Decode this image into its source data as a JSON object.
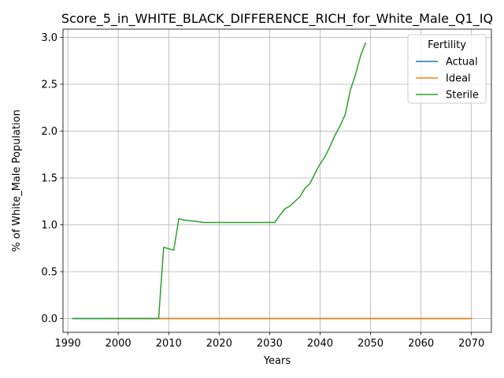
{
  "chart_data": {
    "type": "line",
    "title": "Score_5_in_WHITE_BLACK_DIFFERENCE_RICH_for_White_Male_Q1_IQ",
    "xlabel": "Years",
    "ylabel": "% of White_Male Population",
    "xlim": [
      1989.05,
      2073.95
    ],
    "ylim": [
      -0.147,
      3.088
    ],
    "xticks": [
      1990,
      2000,
      2010,
      2020,
      2030,
      2040,
      2050,
      2060,
      2070
    ],
    "xtick_labels": [
      "1990",
      "2000",
      "2010",
      "2020",
      "2030",
      "2040",
      "2050",
      "2060",
      "2070"
    ],
    "yticks": [
      0.0,
      0.5,
      1.0,
      1.5,
      2.0,
      2.5,
      3.0
    ],
    "ytick_labels": [
      "0.0",
      "0.5",
      "1.0",
      "1.5",
      "2.0",
      "2.5",
      "3.0"
    ],
    "grid": true,
    "legend": {
      "title": "Fertility",
      "position": "upper-right"
    },
    "series": [
      {
        "name": "Actual",
        "color": "#1f77b4",
        "x": [
          1991,
          2070
        ],
        "y": [
          0.0,
          0.0
        ]
      },
      {
        "name": "Ideal",
        "color": "#ff7f0e",
        "x": [
          1998,
          2070
        ],
        "y": [
          0.0,
          0.0
        ]
      },
      {
        "name": "Sterile",
        "color": "#2ca02c",
        "x": [
          1991,
          2008,
          2009,
          2011,
          2012,
          2013,
          2015,
          2017,
          2020,
          2025,
          2031,
          2032,
          2033,
          2034,
          2035,
          2036,
          2037,
          2038,
          2039,
          2040,
          2041,
          2042,
          2043,
          2044,
          2045,
          2046,
          2047,
          2048,
          2049
        ],
        "y": [
          0.0,
          0.0,
          0.76,
          0.73,
          1.065,
          1.05,
          1.04,
          1.025,
          1.025,
          1.025,
          1.025,
          1.1,
          1.17,
          1.2,
          1.25,
          1.3,
          1.39,
          1.44,
          1.55,
          1.65,
          1.73,
          1.84,
          1.96,
          2.06,
          2.18,
          2.44,
          2.6,
          2.8,
          2.94
        ]
      }
    ]
  }
}
